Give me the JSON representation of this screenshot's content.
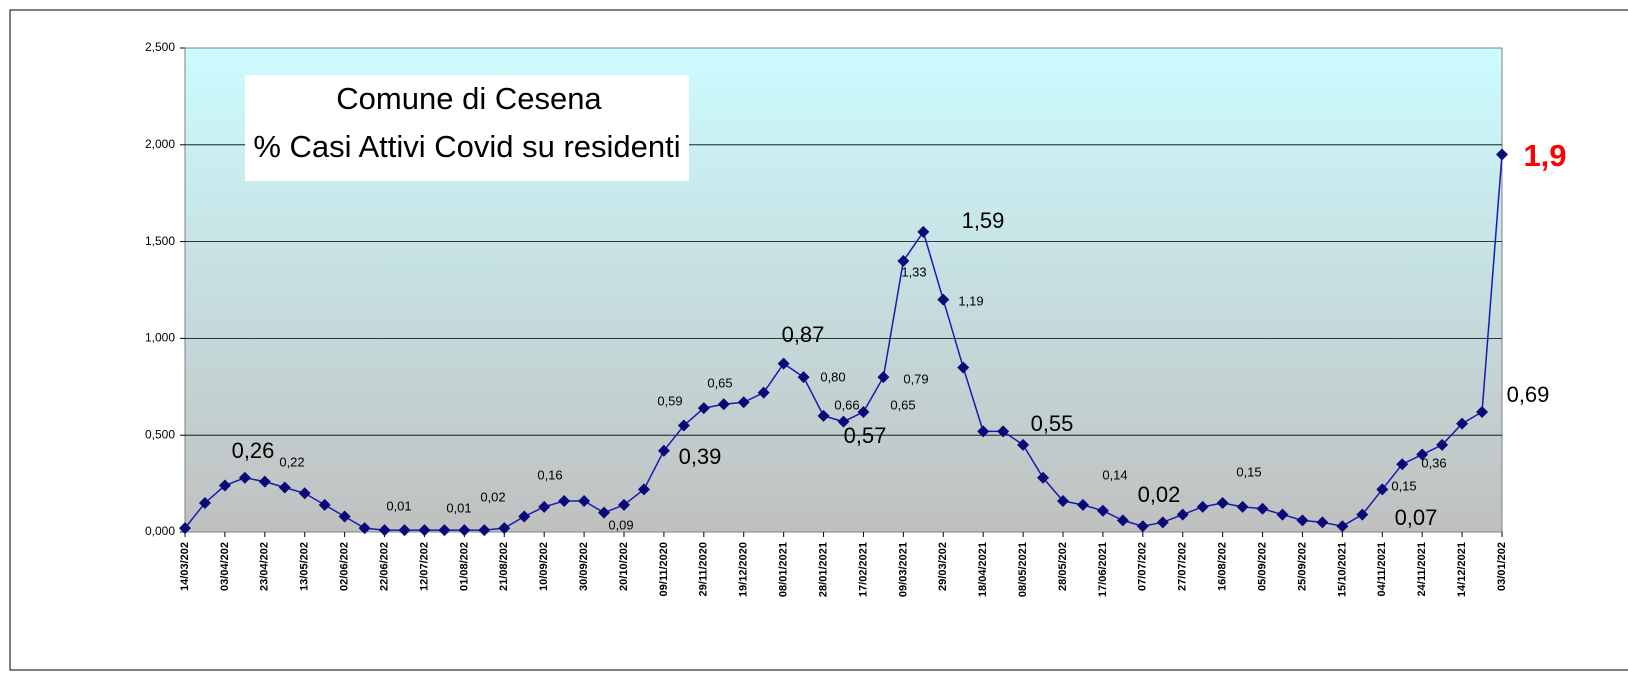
{
  "chart_data": {
    "type": "line",
    "title": "Comune di Cesena",
    "subtitle": "% Casi Attivi Covid su residenti",
    "categories": [
      "14/03/202",
      null,
      "03/04/202",
      null,
      "23/04/202",
      null,
      "13/05/202",
      null,
      "02/06/202",
      null,
      "22/06/202",
      null,
      "12/07/202",
      null,
      "01/08/202",
      null,
      "21/08/202",
      null,
      "10/09/202",
      null,
      "30/09/202",
      null,
      "20/10/202",
      null,
      "09/11/2020",
      null,
      "29/11/2020",
      null,
      "19/12/2020",
      null,
      "08/01/2021",
      null,
      "28/01/2021",
      null,
      "17/02/2021",
      null,
      "09/03/2021",
      null,
      "29/03/202",
      null,
      "18/04/2021",
      null,
      "08/05/2021",
      null,
      "28/05/202",
      null,
      "17/06/2021",
      null,
      "07/07/202",
      null,
      "27/07/202",
      null,
      "16/08/202",
      null,
      "05/09/202",
      null,
      "25/09/202",
      null,
      "15/10/2021",
      null,
      "04/11/2021",
      null,
      "24/11/2021",
      null,
      "14/12/2021",
      null,
      "03/01/202"
    ],
    "series": [
      {
        "name": "% Casi Attivi Covid su residenti",
        "color": "#1a1ab0",
        "marker_color": "#0a0a78",
        "values": [
          0.02,
          0.15,
          0.24,
          0.28,
          0.26,
          0.23,
          0.2,
          0.14,
          0.08,
          0.02,
          0.01,
          0.01,
          0.01,
          0.01,
          0.01,
          0.01,
          0.02,
          0.08,
          0.13,
          0.16,
          0.16,
          0.1,
          0.14,
          0.22,
          0.42,
          0.55,
          0.64,
          0.66,
          0.67,
          0.72,
          0.87,
          0.8,
          0.6,
          0.57,
          0.62,
          0.8,
          1.4,
          1.55,
          1.2,
          0.85,
          0.52,
          0.52,
          0.45,
          0.28,
          0.16,
          0.14,
          0.11,
          0.06,
          0.03,
          0.05,
          0.09,
          0.13,
          0.15,
          0.13,
          0.12,
          0.09,
          0.06,
          0.05,
          0.03,
          0.09,
          0.22,
          0.35,
          0.4,
          0.45,
          0.56,
          0.62,
          1.95
        ]
      }
    ],
    "ylim": [
      0,
      2.5
    ],
    "yticks": [
      {
        "value": 0,
        "label": "0,000"
      },
      {
        "value": 0.5,
        "label": "0,500"
      },
      {
        "value": 1,
        "label": "1,000"
      },
      {
        "value": 1.5,
        "label": "1,500"
      },
      {
        "value": 2,
        "label": "2,000"
      },
      {
        "value": 2.5,
        "label": "2,500"
      }
    ],
    "grid": true,
    "annotations": [
      "0,26",
      "0,22",
      "0,01",
      "0,01",
      "0,02",
      "0,16",
      "0,09",
      "0,59",
      "0,39",
      "0,65",
      "0,87",
      "0,80",
      "0,66",
      "0,57",
      "0,65",
      "0,79",
      "1,33",
      "1,59",
      "1,19",
      "0,55",
      "0,14",
      "0,02",
      "0,15",
      "0,15",
      "0,36",
      "0,07",
      "0,69",
      "1,9"
    ]
  }
}
